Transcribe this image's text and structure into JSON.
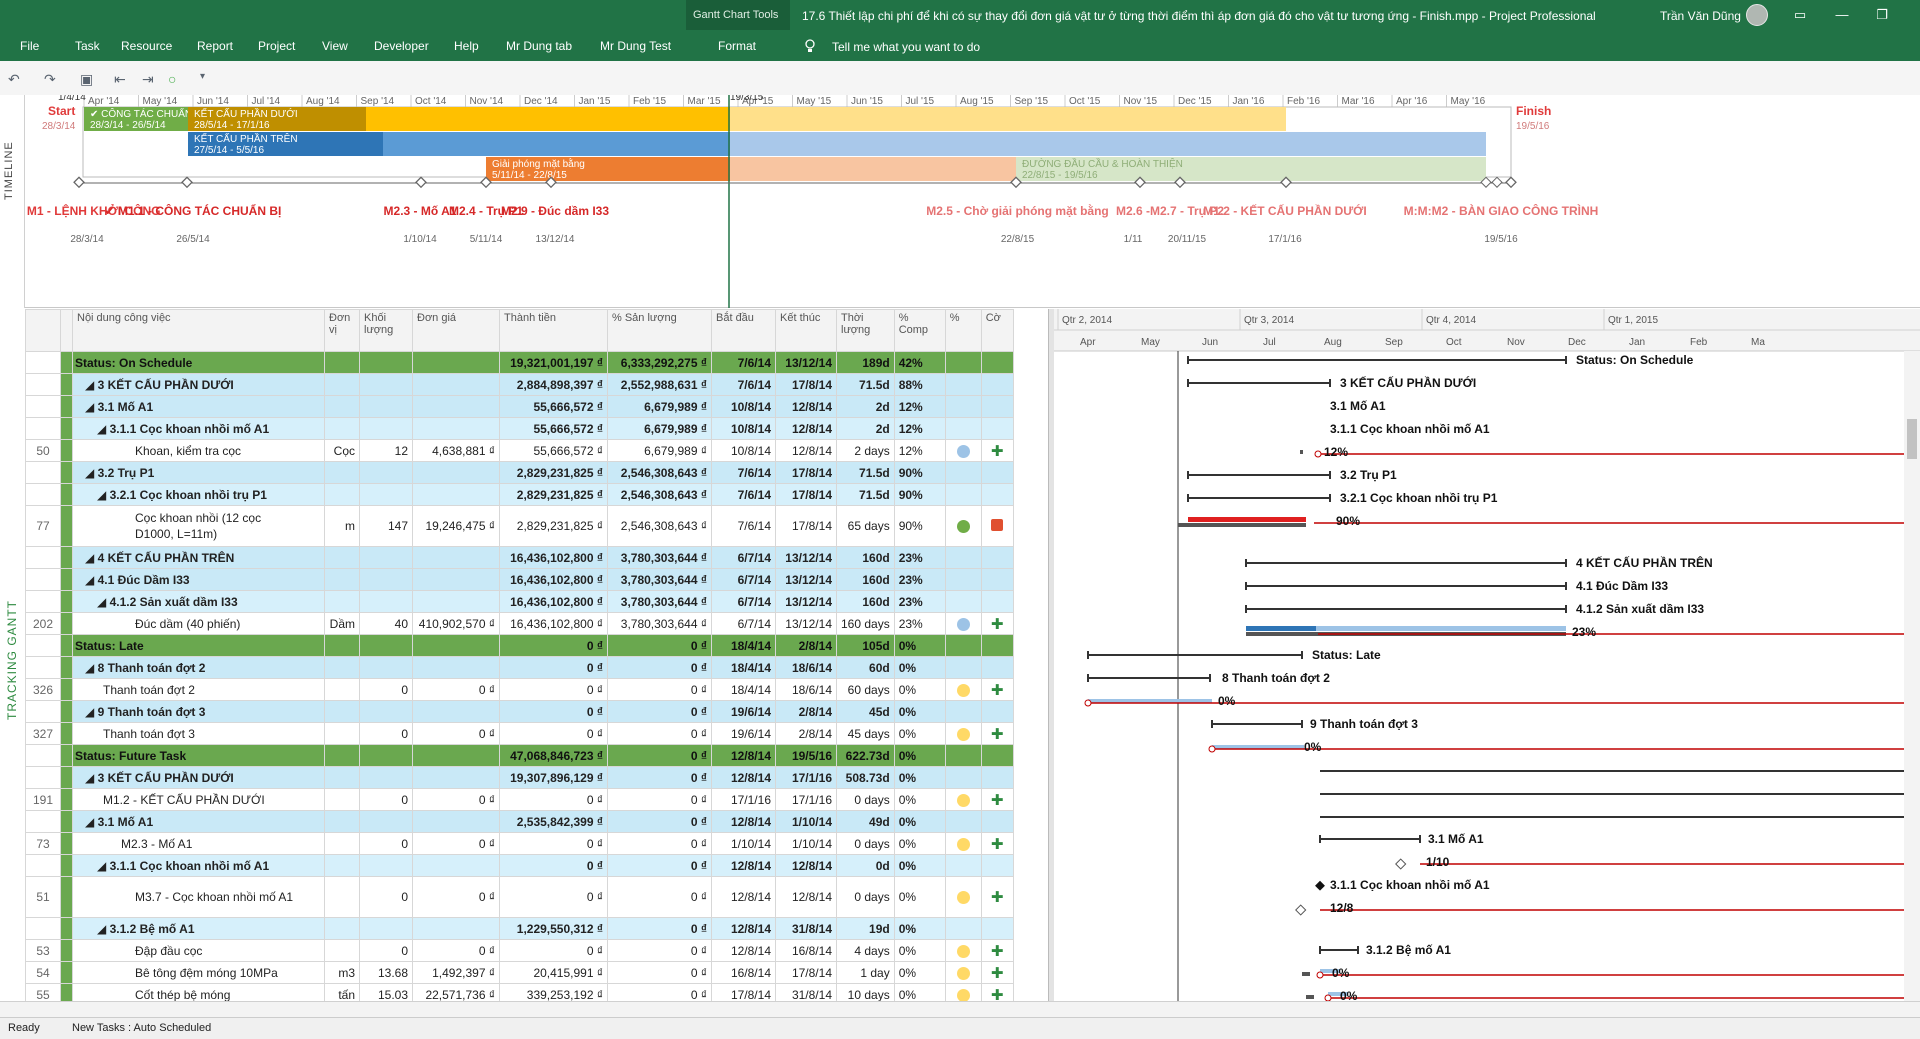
{
  "window": {
    "context_tab": "Gantt Chart Tools",
    "title": "17.6 Thiết lập chi phí để khi có sự thay đổi đơn giá vật tư ở từng thời điểm thì áp đơn giá đó cho vật tư tương ứng - Finish.mpp - Project Professional",
    "user": "Trần Văn Dũng"
  },
  "menu": [
    "File",
    "Task",
    "Resource",
    "Report",
    "Project",
    "View",
    "Developer",
    "Help",
    "Mr Dung tab",
    "Mr Dung Test",
    "Format"
  ],
  "tell_me": "Tell me what you want to do",
  "timeline": {
    "label": "TIMELINE",
    "start_date": "1/4/14",
    "status_date": "19/3/15",
    "start": {
      "label": "Start",
      "date": "28/3/14"
    },
    "finish": {
      "label": "Finish",
      "date": "19/5/16"
    },
    "months": [
      "Apr '14",
      "May '14",
      "Jun '14",
      "Jul '14",
      "Aug '14",
      "Sep '14",
      "Oct '14",
      "Nov '14",
      "Dec '14",
      "Jan '15",
      "Feb '15",
      "Mar '15",
      "Apr '15",
      "May '15",
      "Jun '15",
      "Jul '15",
      "Aug '15",
      "Sep '15",
      "Oct '15",
      "Nov '15",
      "Dec '15",
      "Jan '16",
      "Feb '16",
      "Mar '16",
      "Apr '16",
      "May '16"
    ],
    "bars": [
      {
        "name": "✔ CÔNG TÁC CHUẨN BỊ",
        "dates": "28/3/14 - 26/5/14"
      },
      {
        "name": "KẾT CẤU PHẦN DƯỚI",
        "dates": "28/5/14 - 17/1/16"
      },
      {
        "name": "KẾT CẤU PHẦN TRÊN",
        "dates": "27/5/14 - 5/5/16"
      },
      {
        "name": "Giải phóng mặt bằng",
        "dates": "5/11/14 - 22/8/15"
      },
      {
        "name": "ĐƯỜNG ĐẦU CẦU & HOÀN THIỆN",
        "dates": "22/8/15 - 19/5/16"
      }
    ],
    "milestones": [
      {
        "label": "✔ M1 - LỆNH KHỞI CÔNG",
        "date": "28/3/14"
      },
      {
        "label": "✔ M1.1 - CÔNG TÁC CHUẨN BỊ",
        "date": "26/5/14"
      },
      {
        "label": "M2.3 - Mố A1",
        "date": "1/10/14"
      },
      {
        "label": "M2.4 - Trụ P1",
        "date": "5/11/14"
      },
      {
        "label": "M2.9 - Đúc dầm I33",
        "date": "13/12/14"
      },
      {
        "label": "M2.5 - Chờ giải phóng mặt bằng",
        "date": "22/8/15"
      },
      {
        "label": "M2.6 - ",
        "date": "1/11"
      },
      {
        "label": "M2.7 - Trụ P2",
        "date": "20/11/15"
      },
      {
        "label": "M1.2 - KẾT CẤU PHẦN DƯỚI",
        "date": "17/1/16"
      },
      {
        "label": "M:M:M2 - BÀN GIAO CÔNG TRÌNH",
        "date": "19/5/16"
      }
    ]
  },
  "grid": {
    "side_label": "TRACKING GANTT",
    "headers": [
      "Nội dung công việc",
      "Đơn vị",
      "Khối lượng",
      "Đơn giá",
      "Thành tiền",
      "% Sản lượng",
      "Bắt đầu",
      "Kết thúc",
      "Thời lượng",
      "% Comp",
      "%",
      "Cờ"
    ],
    "rows": [
      {
        "lvl": "g0",
        "id": "",
        "name": "Status: On Schedule",
        "unit": "",
        "qty": "",
        "price": "",
        "cost": "19,321,001,197 ₫",
        "out": "6,333,292,275 ₫",
        "start": "7/6/14",
        "finish": "13/12/14",
        "dur": "189d",
        "pct": "42%",
        "i1": "",
        "i2": ""
      },
      {
        "lvl": "g1",
        "id": "",
        "name": "◢ 3  KẾT CẤU PHẦN DƯỚI",
        "unit": "",
        "qty": "",
        "price": "",
        "cost": "2,884,898,397 ₫",
        "out": "2,552,988,631 ₫",
        "start": "7/6/14",
        "finish": "17/8/14",
        "dur": "71.5d",
        "pct": "88%",
        "i1": "",
        "i2": ""
      },
      {
        "lvl": "g1",
        "id": "",
        "name": "◢ 3.1  Mố A1",
        "unit": "",
        "qty": "",
        "price": "",
        "cost": "55,666,572 ₫",
        "out": "6,679,989 ₫",
        "start": "10/8/14",
        "finish": "12/8/14",
        "dur": "2d",
        "pct": "12%",
        "i1": "",
        "i2": ""
      },
      {
        "lvl": "g2",
        "id": "",
        "name": "◢ 3.1.1  Cọc khoan nhồi mố A1",
        "unit": "",
        "qty": "",
        "price": "",
        "cost": "55,666,572 ₫",
        "out": "6,679,989 ₫",
        "start": "10/8/14",
        "finish": "12/8/14",
        "dur": "2d",
        "pct": "12%",
        "i1": "",
        "i2": ""
      },
      {
        "lvl": "task",
        "id": "50",
        "name": "Khoan, kiểm tra cọc",
        "unit": "Cọc",
        "qty": "12",
        "price": "4,638,881 ₫",
        "cost": "55,666,572 ₫",
        "out": "6,679,989 ₫",
        "start": "10/8/14",
        "finish": "12/8/14",
        "dur": "2 days",
        "pct": "12%",
        "i1": "blue",
        "i2": "plus"
      },
      {
        "lvl": "g1",
        "id": "",
        "name": "◢ 3.2  Trụ P1",
        "unit": "",
        "qty": "",
        "price": "",
        "cost": "2,829,231,825 ₫",
        "out": "2,546,308,643 ₫",
        "start": "7/6/14",
        "finish": "17/8/14",
        "dur": "71.5d",
        "pct": "90%",
        "i1": "",
        "i2": ""
      },
      {
        "lvl": "g2",
        "id": "",
        "name": "◢ 3.2.1  Cọc khoan nhồi trụ P1",
        "unit": "",
        "qty": "",
        "price": "",
        "cost": "2,829,231,825 ₫",
        "out": "2,546,308,643 ₫",
        "start": "7/6/14",
        "finish": "17/8/14",
        "dur": "71.5d",
        "pct": "90%",
        "i1": "",
        "i2": ""
      },
      {
        "lvl": "task",
        "tall": true,
        "id": "77",
        "name": "Cọc khoan nhồi (12 cọc",
        "name2": "D1000, L=11m)",
        "unit": "m",
        "qty": "147",
        "price": "19,246,475 ₫",
        "cost": "2,829,231,825 ₫",
        "out": "2,546,308,643 ₫",
        "start": "7/6/14",
        "finish": "17/8/14",
        "dur": "65 days",
        "pct": "90%",
        "i1": "green",
        "i2": "red"
      },
      {
        "lvl": "g1",
        "id": "",
        "name": "◢ 4  KẾT CẤU PHẦN TRÊN",
        "unit": "",
        "qty": "",
        "price": "",
        "cost": "16,436,102,800 ₫",
        "out": "3,780,303,644 ₫",
        "start": "6/7/14",
        "finish": "13/12/14",
        "dur": "160d",
        "pct": "23%",
        "i1": "",
        "i2": ""
      },
      {
        "lvl": "g1",
        "id": "",
        "name": "◢ 4.1  Đúc Dầm I33",
        "unit": "",
        "qty": "",
        "price": "",
        "cost": "16,436,102,800 ₫",
        "out": "3,780,303,644 ₫",
        "start": "6/7/14",
        "finish": "13/12/14",
        "dur": "160d",
        "pct": "23%",
        "i1": "",
        "i2": ""
      },
      {
        "lvl": "g2",
        "id": "",
        "name": "◢ 4.1.2  Sản xuất dầm I33",
        "unit": "",
        "qty": "",
        "price": "",
        "cost": "16,436,102,800 ₫",
        "out": "3,780,303,644 ₫",
        "start": "6/7/14",
        "finish": "13/12/14",
        "dur": "160d",
        "pct": "23%",
        "i1": "",
        "i2": ""
      },
      {
        "lvl": "task",
        "id": "202",
        "name": "Đúc dầm (40 phiến)",
        "unit": "Dầm",
        "qty": "40",
        "price": "410,902,570 ₫",
        "cost": "16,436,102,800 ₫",
        "out": "3,780,303,644 ₫",
        "start": "6/7/14",
        "finish": "13/12/14",
        "dur": "160 days",
        "pct": "23%",
        "i1": "blue",
        "i2": "plus"
      },
      {
        "lvl": "g0",
        "id": "",
        "name": "Status: Late",
        "unit": "",
        "qty": "",
        "price": "",
        "cost": "0 ₫",
        "out": "0 ₫",
        "start": "18/4/14",
        "finish": "2/8/14",
        "dur": "105d",
        "pct": "0%",
        "i1": "",
        "i2": ""
      },
      {
        "lvl": "g1",
        "id": "",
        "name": "◢ 8  Thanh toán đợt 2",
        "unit": "",
        "qty": "",
        "price": "",
        "cost": "0 ₫",
        "out": "0 ₫",
        "start": "18/4/14",
        "finish": "18/6/14",
        "dur": "60d",
        "pct": "0%",
        "i1": "",
        "i2": ""
      },
      {
        "lvl": "task",
        "id": "326",
        "name": "Thanh toán đợt 2",
        "unit": "",
        "qty": "0",
        "price": "0 ₫",
        "cost": "0 ₫",
        "out": "0 ₫",
        "start": "18/4/14",
        "finish": "18/6/14",
        "dur": "60 days",
        "pct": "0%",
        "i1": "yellow",
        "i2": "plus"
      },
      {
        "lvl": "g1",
        "id": "",
        "name": "◢ 9  Thanh toán đợt 3",
        "unit": "",
        "qty": "",
        "price": "",
        "cost": "0 ₫",
        "out": "0 ₫",
        "start": "19/6/14",
        "finish": "2/8/14",
        "dur": "45d",
        "pct": "0%",
        "i1": "",
        "i2": ""
      },
      {
        "lvl": "task",
        "id": "327",
        "name": "Thanh toán đợt 3",
        "unit": "",
        "qty": "0",
        "price": "0 ₫",
        "cost": "0 ₫",
        "out": "0 ₫",
        "start": "19/6/14",
        "finish": "2/8/14",
        "dur": "45 days",
        "pct": "0%",
        "i1": "yellow",
        "i2": "plus"
      },
      {
        "lvl": "g0",
        "id": "",
        "name": "Status: Future Task",
        "unit": "",
        "qty": "",
        "price": "",
        "cost": "47,068,846,723 ₫",
        "out": "0 ₫",
        "start": "12/8/14",
        "finish": "19/5/16",
        "dur": "622.73d",
        "pct": "0%",
        "i1": "",
        "i2": ""
      },
      {
        "lvl": "g1",
        "id": "",
        "name": "◢ 3  KẾT CẤU PHẦN DƯỚI",
        "unit": "",
        "qty": "",
        "price": "",
        "cost": "19,307,896,129 ₫",
        "out": "0 ₫",
        "start": "12/8/14",
        "finish": "17/1/16",
        "dur": "508.73d",
        "pct": "0%",
        "i1": "",
        "i2": ""
      },
      {
        "lvl": "task",
        "id": "191",
        "name": "M1.2 - KẾT CẤU PHẦN DƯỚI",
        "unit": "",
        "qty": "0",
        "price": "0 ₫",
        "cost": "0 ₫",
        "out": "0 ₫",
        "start": "17/1/16",
        "finish": "17/1/16",
        "dur": "0 days",
        "pct": "0%",
        "i1": "yellow",
        "i2": "plus"
      },
      {
        "lvl": "g1",
        "id": "",
        "name": "◢ 3.1  Mố A1",
        "unit": "",
        "qty": "",
        "price": "",
        "cost": "2,535,842,399 ₫",
        "out": "0 ₫",
        "start": "12/8/14",
        "finish": "1/10/14",
        "dur": "49d",
        "pct": "0%",
        "i1": "",
        "i2": ""
      },
      {
        "lvl": "task",
        "id": "73",
        "name": "M2.3 - Mố A1",
        "unit": "",
        "qty": "0",
        "price": "0 ₫",
        "cost": "0 ₫",
        "out": "0 ₫",
        "start": "1/10/14",
        "finish": "1/10/14",
        "dur": "0 days",
        "pct": "0%",
        "i1": "yellow",
        "i2": "plus"
      },
      {
        "lvl": "g2",
        "id": "",
        "name": "◢ 3.1.1  Cọc khoan nhồi mố A1",
        "unit": "",
        "qty": "",
        "price": "",
        "cost": "0 ₫",
        "out": "0 ₫",
        "start": "12/8/14",
        "finish": "12/8/14",
        "dur": "0d",
        "pct": "0%",
        "i1": "",
        "i2": ""
      },
      {
        "lvl": "task",
        "tall": true,
        "id": "51",
        "name": "M3.7 - Cọc khoan nhồi mố A1",
        "name2": "",
        "unit": "",
        "qty": "0",
        "price": "0 ₫",
        "cost": "0 ₫",
        "out": "0 ₫",
        "start": "12/8/14",
        "finish": "12/8/14",
        "dur": "0 days",
        "pct": "0%",
        "i1": "yellow",
        "i2": "plus"
      },
      {
        "lvl": "g2",
        "id": "",
        "name": "◢ 3.1.2  Bệ mố A1",
        "unit": "",
        "qty": "",
        "price": "",
        "cost": "1,229,550,312 ₫",
        "out": "0 ₫",
        "start": "12/8/14",
        "finish": "31/8/14",
        "dur": "19d",
        "pct": "0%",
        "i1": "",
        "i2": ""
      },
      {
        "lvl": "task",
        "id": "53",
        "name": "Đập đầu cọc",
        "unit": "",
        "qty": "0",
        "price": "0 ₫",
        "cost": "0 ₫",
        "out": "0 ₫",
        "start": "12/8/14",
        "finish": "16/8/14",
        "dur": "4 days",
        "pct": "0%",
        "i1": "yellow",
        "i2": "plus"
      },
      {
        "lvl": "task",
        "id": "54",
        "name": "Bê tông đệm móng 10MPa",
        "unit": "m3",
        "qty": "13.68",
        "price": "1,492,397 ₫",
        "cost": "20,415,991 ₫",
        "out": "0 ₫",
        "start": "16/8/14",
        "finish": "17/8/14",
        "dur": "1 day",
        "pct": "0%",
        "i1": "yellow",
        "i2": "plus"
      },
      {
        "lvl": "task",
        "id": "55",
        "name": "Cốt thép bệ móng",
        "unit": "tấn",
        "qty": "15.03",
        "price": "22,571,736 ₫",
        "cost": "339,253,192 ₫",
        "out": "0 ₫",
        "start": "17/8/14",
        "finish": "31/8/14",
        "dur": "10 days",
        "pct": "0%",
        "i1": "yellow",
        "i2": "plus"
      }
    ]
  },
  "gantt": {
    "quarters": [
      "Qtr 2, 2014",
      "Qtr 3, 2014",
      "Qtr 4, 2014",
      "Qtr 1, 2015"
    ],
    "months": [
      "Apr",
      "May",
      "Jun",
      "Jul",
      "Aug",
      "Sep",
      "Oct",
      "Nov",
      "Dec",
      "Jan",
      "Feb",
      "Ma"
    ],
    "labels": [
      "Status: On Schedule",
      "3  KẾT CẤU PHẦN DƯỚI",
      "3.1  Mố A1",
      "3.1.1  Cọc khoan nhồi mố A1",
      "12%",
      "3.2  Trụ P1",
      "3.2.1  Cọc khoan nhồi trụ P1",
      "90%",
      "4  KẾT CẤU PHẦN TRÊN",
      "4.1  Đúc Dầm I33",
      "4.1.2  Sản xuất dầm I33",
      "23%",
      "Status: Late",
      "8  Thanh toán đợt 2",
      "0%",
      "9  Thanh toán đợt 3",
      "0%",
      "3.1  Mố A1",
      "1/10",
      "3.1.1  Cọc khoan nhồi mố A1",
      "12/8",
      "3.1.2  Bệ mố A1",
      "0%",
      "0%",
      "0%"
    ]
  },
  "status": {
    "ready": "Ready",
    "mode": "New Tasks : Auto Scheduled"
  },
  "colors": {
    "green": "#217346",
    "group_status": "#6aa84f",
    "summary": "#c9e9f7",
    "orange": "#ed7d31",
    "gold": "#ffc000",
    "blue": "#2e75b6"
  }
}
